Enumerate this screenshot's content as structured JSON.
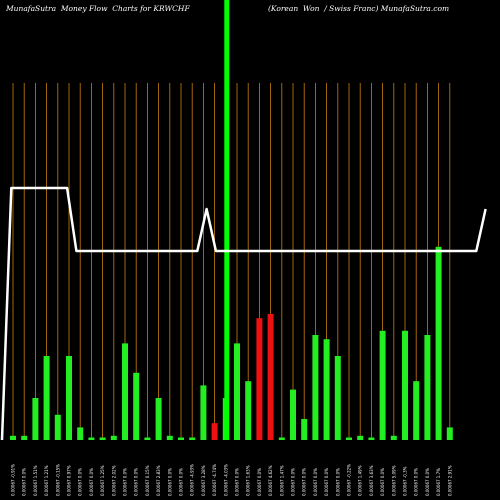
{
  "header": {
    "title_left": "MunafaSutra  Money Flow  Charts for KRWCHF",
    "title_right": "(Korean  Won  / Swiss Franc) MunafaSutra.com"
  },
  "colors": {
    "background": "#000000",
    "grid": "#c87f0a",
    "up": "#22ee22",
    "down": "#ee1111",
    "line": "#ffffff",
    "highlight": "#00ff00"
  },
  "chart_data": {
    "type": "bar",
    "highlight_index": 19,
    "categories": [
      "0.00067 -0.91%",
      "0.00067 0.0%",
      "0.00067 1.51%",
      "0.00067 1.21%",
      "0.00067 -0.15%",
      "0.00067 0.97%",
      "0.00067 0.0%",
      "0.00067 0.0%",
      "0.00067 1.25%",
      "0.00067 2.02%",
      "0.00067 0.0%",
      "0.00067 0.0%",
      "0.00067 0.15%",
      "0.00067 2.83%",
      "0.00067 0.0%",
      "0.00067 0.0%",
      "0.00067 -4.93%",
      "0.00067 3.28%",
      "0.00067 -4.74%",
      "0.00067 -4.03%",
      "0.00067 0.0%",
      "0.00067 1.63%",
      "0.00067 0.0%",
      "0.00067 4.62%",
      "0.00067 1.47%",
      "0.00067 0.0%",
      "0.00067 0.0%",
      "0.00067 0.0%",
      "0.00067 0.0%",
      "0.00067 0.0%",
      "0.00067 -0.22%",
      "0.00067 1.49%",
      "0.00067 3.63%",
      "0.00067 0.0%",
      "0.00067 5.09%",
      "0.00067 -0.3%",
      "0.00067 0.0%",
      "0.00067 0.0%",
      "0.00067 1.7%",
      "0.00067 2.91%"
    ],
    "series": [
      {
        "values": [
          1,
          1,
          10,
          20,
          6,
          20,
          3,
          0,
          0,
          1,
          23,
          16,
          0,
          10,
          1,
          0,
          0,
          13,
          4,
          10,
          23,
          14,
          29,
          30,
          0,
          12,
          5,
          25,
          24,
          20,
          0,
          1,
          0,
          26,
          1,
          26,
          14,
          25,
          46,
          3
        ],
        "direction": [
          "up",
          "up",
          "up",
          "up",
          "up",
          "up",
          "up",
          "up",
          "up",
          "up",
          "up",
          "up",
          "up",
          "up",
          "up",
          "up",
          "up",
          "up",
          "down",
          "up",
          "up",
          "up",
          "down",
          "down",
          "up",
          "up",
          "up",
          "up",
          "up",
          "up",
          "up",
          "up",
          "up",
          "up",
          "up",
          "up",
          "up",
          "up",
          "up",
          "up"
        ]
      }
    ],
    "line_values": [
      0,
      60,
      60,
      60,
      60,
      60,
      60,
      60,
      45,
      45,
      45,
      45,
      45,
      45,
      45,
      45,
      45,
      45,
      45,
      45,
      45,
      45,
      55,
      45,
      45,
      45,
      45,
      45,
      45,
      45,
      45,
      45,
      45,
      45,
      45,
      45,
      45,
      45,
      45,
      45,
      45,
      45,
      45,
      45,
      45,
      45,
      45,
      45,
      45,
      45,
      45,
      45,
      55
    ]
  }
}
